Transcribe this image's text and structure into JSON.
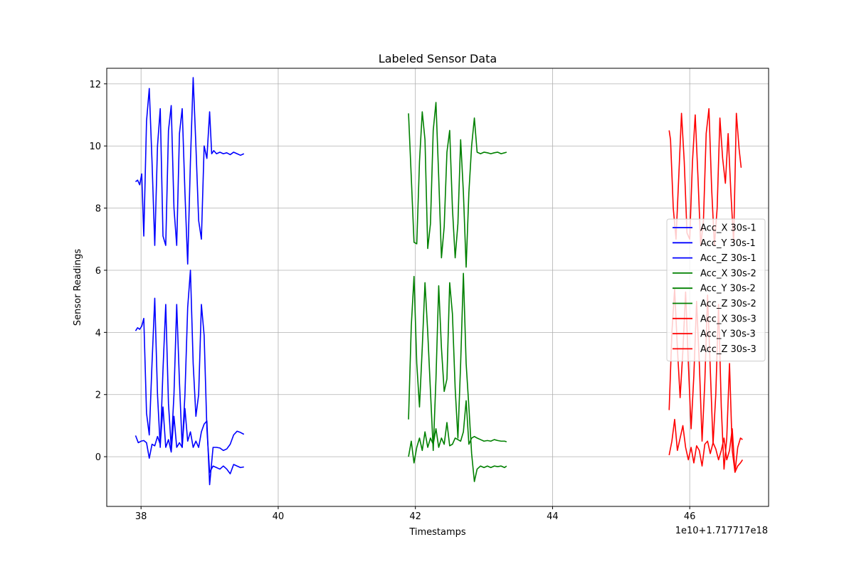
{
  "chart_data": {
    "type": "line",
    "title": "Labeled Sensor Data",
    "xlabel": "Timestamps",
    "ylabel": "Sensor Readings",
    "x_offset_label": "1e10+1.717717e18",
    "xlim": [
      37.5,
      47.15
    ],
    "ylim": [
      -1.6,
      12.5
    ],
    "xticks": [
      38,
      40,
      42,
      44,
      46
    ],
    "yticks": [
      0,
      2,
      4,
      6,
      8,
      10,
      12
    ],
    "grid": true,
    "legend_position": "center-right",
    "series": [
      {
        "name": "Acc_X 30s-1",
        "color": "#0000ff",
        "x": [
          37.92,
          37.96,
          38.0,
          38.04,
          38.08,
          38.12,
          38.16,
          38.2,
          38.24,
          38.28,
          38.32,
          38.36,
          38.4,
          38.44,
          38.48,
          38.52,
          38.56,
          38.6,
          38.64,
          38.68,
          38.72,
          38.76,
          38.8,
          38.84,
          38.88,
          38.92,
          38.96,
          39.0,
          39.05,
          39.1,
          39.15,
          39.2,
          39.25,
          39.3,
          39.35,
          39.4,
          39.45,
          39.5
        ],
        "y": [
          0.68,
          0.45,
          0.5,
          0.52,
          0.45,
          -0.05,
          0.4,
          0.35,
          0.65,
          0.4,
          1.6,
          0.3,
          0.55,
          0.15,
          1.3,
          0.3,
          0.45,
          0.3,
          1.55,
          0.5,
          0.8,
          0.3,
          0.5,
          0.3,
          0.8,
          1.05,
          1.15,
          -0.9,
          0.3,
          0.3,
          0.28,
          0.2,
          0.25,
          0.4,
          0.7,
          0.82,
          0.78,
          0.72
        ]
      },
      {
        "name": "Acc_Y 30s-1",
        "color": "#0000ff",
        "x": [
          37.92,
          37.95,
          37.98,
          38.01,
          38.04,
          38.08,
          38.12,
          38.16,
          38.2,
          38.24,
          38.28,
          38.32,
          38.36,
          38.4,
          38.44,
          38.48,
          38.52,
          38.56,
          38.6,
          38.64,
          38.68,
          38.72,
          38.76,
          38.8,
          38.84,
          38.88,
          38.92,
          38.96,
          39.0,
          39.05,
          39.1,
          39.15,
          39.2,
          39.25,
          39.3,
          39.35,
          39.4,
          39.45,
          39.5
        ],
        "y": [
          4.05,
          4.15,
          4.1,
          4.2,
          4.45,
          1.4,
          0.7,
          3.0,
          5.1,
          2.0,
          0.3,
          2.8,
          4.9,
          1.7,
          0.3,
          2.0,
          4.9,
          2.4,
          0.3,
          2.0,
          4.8,
          6.0,
          3.0,
          1.3,
          2.0,
          4.9,
          3.9,
          0.9,
          -0.5,
          -0.3,
          -0.35,
          -0.4,
          -0.3,
          -0.4,
          -0.55,
          -0.25,
          -0.3,
          -0.35,
          -0.33
        ]
      },
      {
        "name": "Acc_Z 30s-1",
        "color": "#0000ff",
        "x": [
          37.92,
          37.95,
          37.98,
          38.01,
          38.04,
          38.08,
          38.12,
          38.16,
          38.2,
          38.24,
          38.28,
          38.32,
          38.36,
          38.4,
          38.44,
          38.48,
          38.52,
          38.56,
          38.6,
          38.64,
          38.68,
          38.72,
          38.76,
          38.8,
          38.84,
          38.88,
          38.92,
          38.96,
          39.0,
          39.03,
          39.06,
          39.1,
          39.15,
          39.2,
          39.25,
          39.3,
          39.35,
          39.4,
          39.45,
          39.5
        ],
        "y": [
          8.85,
          8.9,
          8.75,
          9.1,
          7.1,
          10.8,
          11.85,
          9.5,
          6.8,
          10.0,
          11.2,
          7.1,
          6.8,
          10.5,
          11.3,
          8.0,
          6.8,
          10.4,
          11.2,
          8.5,
          6.2,
          9.5,
          12.2,
          10.0,
          7.6,
          7.0,
          10.0,
          9.6,
          11.1,
          9.75,
          9.85,
          9.75,
          9.8,
          9.75,
          9.78,
          9.72,
          9.8,
          9.75,
          9.7,
          9.75
        ]
      },
      {
        "name": "Acc_X 30s-2",
        "color": "#008000",
        "x": [
          41.9,
          41.94,
          41.98,
          42.02,
          42.06,
          42.1,
          42.14,
          42.18,
          42.22,
          42.26,
          42.3,
          42.34,
          42.38,
          42.42,
          42.46,
          42.5,
          42.54,
          42.58,
          42.62,
          42.66,
          42.7,
          42.74,
          42.78,
          42.82,
          42.86,
          42.9,
          42.95,
          43.0,
          43.05,
          43.1,
          43.15,
          43.2,
          43.25,
          43.3,
          43.33
        ],
        "y": [
          0.0,
          0.5,
          -0.2,
          0.3,
          0.6,
          0.2,
          0.8,
          0.3,
          0.6,
          0.4,
          0.9,
          0.3,
          0.6,
          0.4,
          1.1,
          0.35,
          0.4,
          0.6,
          0.55,
          0.5,
          0.8,
          1.8,
          0.4,
          0.6,
          0.65,
          0.6,
          0.55,
          0.5,
          0.52,
          0.5,
          0.55,
          0.52,
          0.5,
          0.5,
          0.48
        ]
      },
      {
        "name": "Acc_Y 30s-2",
        "color": "#008000",
        "x": [
          41.9,
          41.94,
          41.98,
          42.02,
          42.06,
          42.1,
          42.14,
          42.18,
          42.22,
          42.26,
          42.3,
          42.34,
          42.38,
          42.42,
          42.46,
          42.5,
          42.54,
          42.58,
          42.62,
          42.66,
          42.7,
          42.74,
          42.78,
          42.82,
          42.86,
          42.9,
          42.95,
          43.0,
          43.05,
          43.1,
          43.15,
          43.2,
          43.25,
          43.3,
          43.33
        ],
        "y": [
          1.2,
          4.2,
          5.8,
          3.0,
          1.6,
          3.5,
          5.6,
          4.0,
          2.1,
          0.2,
          2.5,
          5.5,
          3.5,
          2.1,
          2.5,
          5.6,
          4.6,
          2.2,
          0.6,
          3.0,
          5.9,
          3.0,
          1.6,
          0.1,
          -0.8,
          -0.4,
          -0.3,
          -0.35,
          -0.3,
          -0.35,
          -0.3,
          -0.32,
          -0.3,
          -0.35,
          -0.3
        ]
      },
      {
        "name": "Acc_Z 30s-2",
        "color": "#008000",
        "x": [
          41.9,
          41.94,
          41.98,
          42.02,
          42.06,
          42.1,
          42.14,
          42.18,
          42.22,
          42.26,
          42.3,
          42.34,
          42.38,
          42.42,
          42.46,
          42.5,
          42.54,
          42.58,
          42.62,
          42.66,
          42.7,
          42.74,
          42.78,
          42.82,
          42.86,
          42.9,
          42.95,
          43.0,
          43.05,
          43.1,
          43.15,
          43.2,
          43.25,
          43.3,
          43.33
        ],
        "y": [
          11.05,
          9.0,
          6.9,
          6.85,
          9.5,
          11.1,
          10.2,
          6.7,
          7.5,
          10.5,
          11.4,
          9.0,
          6.4,
          7.4,
          9.8,
          10.5,
          8.0,
          6.4,
          7.5,
          10.2,
          8.5,
          6.1,
          8.5,
          10.0,
          10.9,
          9.8,
          9.75,
          9.8,
          9.78,
          9.75,
          9.78,
          9.8,
          9.75,
          9.78,
          9.8
        ]
      },
      {
        "name": "Acc_X 30s-3",
        "color": "#ff0000",
        "x": [
          45.7,
          45.74,
          45.78,
          45.82,
          45.86,
          45.9,
          45.94,
          45.98,
          46.02,
          46.06,
          46.1,
          46.14,
          46.18,
          46.22,
          46.26,
          46.3,
          46.34,
          46.38,
          46.42,
          46.46,
          46.5,
          46.54,
          46.58,
          46.62,
          46.66,
          46.7,
          46.74,
          46.77
        ],
        "y": [
          0.05,
          0.5,
          1.2,
          0.2,
          0.6,
          1.0,
          0.3,
          -0.1,
          0.3,
          -0.2,
          0.35,
          0.2,
          -0.3,
          0.4,
          0.5,
          0.1,
          0.45,
          0.25,
          -0.1,
          0.2,
          0.6,
          -0.1,
          0.2,
          0.9,
          -0.5,
          0.3,
          0.6,
          0.55
        ]
      },
      {
        "name": "Acc_Y 30s-3",
        "color": "#ff0000",
        "x": [
          45.7,
          45.74,
          45.78,
          45.82,
          45.86,
          45.9,
          45.94,
          45.98,
          46.02,
          46.06,
          46.1,
          46.14,
          46.18,
          46.22,
          46.26,
          46.3,
          46.34,
          46.38,
          46.42,
          46.46,
          46.5,
          46.54,
          46.58,
          46.62,
          46.66,
          46.7,
          46.74,
          46.77
        ],
        "y": [
          1.5,
          4.0,
          5.4,
          3.5,
          1.9,
          3.4,
          5.3,
          3.0,
          0.9,
          2.6,
          5.0,
          3.0,
          0.5,
          2.4,
          5.2,
          2.8,
          0.4,
          2.0,
          4.9,
          1.6,
          -0.4,
          0.6,
          3.0,
          0.2,
          -0.5,
          -0.3,
          -0.2,
          -0.1
        ]
      },
      {
        "name": "Acc_Z 30s-3",
        "color": "#ff0000",
        "x": [
          45.7,
          45.72,
          45.76,
          45.8,
          45.84,
          45.88,
          45.92,
          45.96,
          46.0,
          46.04,
          46.08,
          46.12,
          46.16,
          46.2,
          46.24,
          46.28,
          46.32,
          46.36,
          46.4,
          46.44,
          46.48,
          46.52,
          46.56,
          46.6,
          46.64,
          46.68,
          46.72,
          46.75
        ],
        "y": [
          10.5,
          10.2,
          8.0,
          7.0,
          9.0,
          11.05,
          9.5,
          7.2,
          7.0,
          9.5,
          11.0,
          9.0,
          6.8,
          7.6,
          10.4,
          11.2,
          8.6,
          6.8,
          8.0,
          10.9,
          9.6,
          8.8,
          10.4,
          8.5,
          6.9,
          11.05,
          9.9,
          9.3
        ]
      }
    ]
  }
}
